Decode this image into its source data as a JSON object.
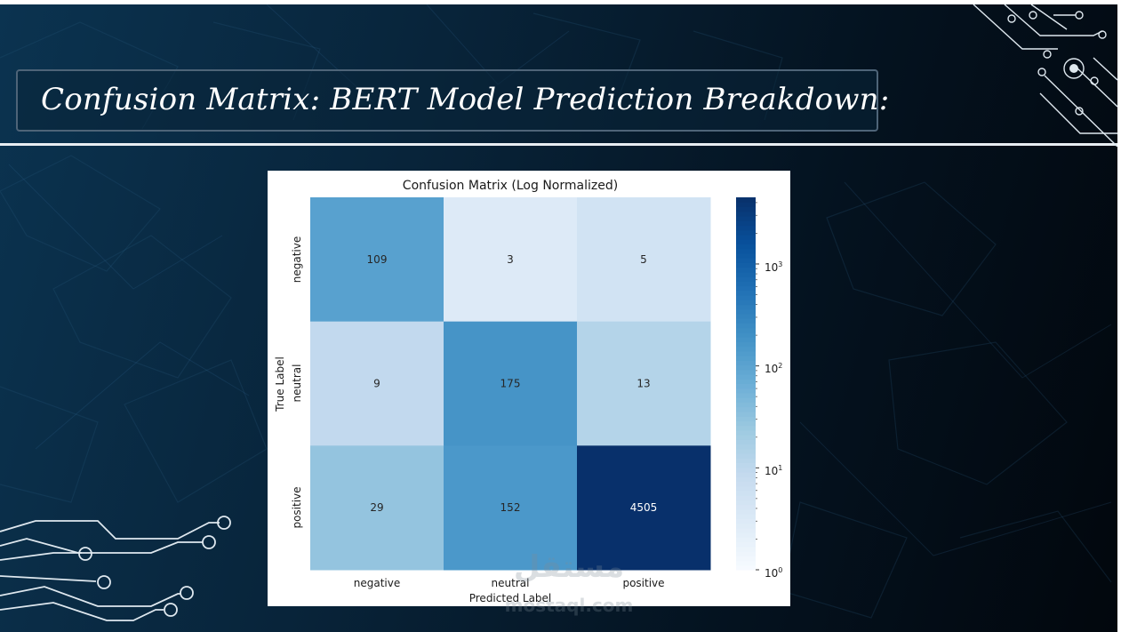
{
  "slide": {
    "title": "Confusion Matrix: BERT Model Prediction Breakdown:"
  },
  "colors": {
    "title_text": "#ffffff",
    "title_border": "#4e6478",
    "colormap": "Blues",
    "colormap_low": "#f7fbff",
    "colormap_high": "#08306b"
  },
  "chart_data": {
    "type": "heatmap",
    "title": "Confusion Matrix (Log Normalized)",
    "xlabel": "Predicted Label",
    "ylabel": "True Label",
    "x_categories": [
      "negative",
      "neutral",
      "positive"
    ],
    "y_categories": [
      "negative",
      "neutral",
      "positive"
    ],
    "matrix": [
      [
        109,
        3,
        5
      ],
      [
        9,
        175,
        13
      ],
      [
        29,
        152,
        4505
      ]
    ],
    "color_scale": "log",
    "colorbar": {
      "range": [
        1,
        4505
      ],
      "ticks": [
        {
          "value": 1,
          "base": "10",
          "exp": "0"
        },
        {
          "value": 10,
          "base": "10",
          "exp": "1"
        },
        {
          "value": 100,
          "base": "10",
          "exp": "2"
        },
        {
          "value": 1000,
          "base": "10",
          "exp": "3"
        }
      ]
    }
  },
  "watermark": {
    "arabic": "مستقل",
    "latin": "mostaql.com"
  }
}
